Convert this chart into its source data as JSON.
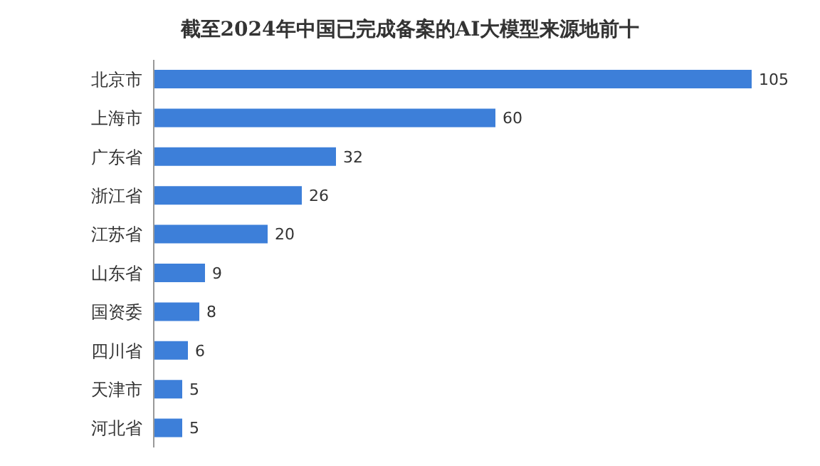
{
  "chart_data": {
    "type": "bar",
    "orientation": "horizontal",
    "title": "截至2024年中国已完成备案的AI大模型来源地前十",
    "categories": [
      "北京市",
      "上海市",
      "广东省",
      "浙江省",
      "江苏省",
      "山东省",
      "国资委",
      "四川省",
      "天津市",
      "河北省"
    ],
    "values": [
      105,
      60,
      32,
      26,
      20,
      9,
      8,
      6,
      5,
      5
    ],
    "color": "#3d7fd9",
    "data_labels": true,
    "grid": false
  }
}
